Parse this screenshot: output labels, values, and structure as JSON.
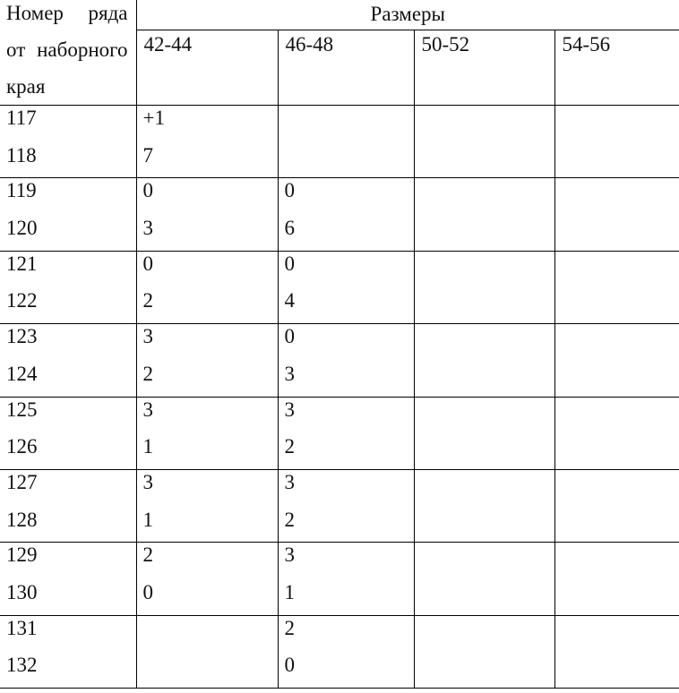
{
  "document": {
    "row_header": {
      "line1_words": [
        "Номер",
        "ряда"
      ],
      "line2_words": [
        "от",
        "наборного"
      ],
      "line3": "края"
    },
    "sizes_group_label": "Размеры",
    "size_columns": [
      "42-44",
      "46-48",
      "50-52",
      "54-56"
    ],
    "rows": [
      {
        "nums": [
          "117",
          "118"
        ],
        "cols": [
          [
            "+1",
            "7"
          ],
          [
            "",
            ""
          ],
          [
            "",
            ""
          ],
          [
            "",
            ""
          ]
        ]
      },
      {
        "nums": [
          "119",
          "120"
        ],
        "cols": [
          [
            "0",
            "3"
          ],
          [
            "0",
            "6"
          ],
          [
            "",
            ""
          ],
          [
            "",
            ""
          ]
        ]
      },
      {
        "nums": [
          "121",
          "122"
        ],
        "cols": [
          [
            "0",
            "2"
          ],
          [
            "0",
            "4"
          ],
          [
            "",
            ""
          ],
          [
            "",
            ""
          ]
        ]
      },
      {
        "nums": [
          "123",
          "124"
        ],
        "cols": [
          [
            "3",
            "2"
          ],
          [
            "0",
            "3"
          ],
          [
            "",
            ""
          ],
          [
            "",
            ""
          ]
        ]
      },
      {
        "nums": [
          "125",
          "126"
        ],
        "cols": [
          [
            "3",
            "1"
          ],
          [
            "3",
            "2"
          ],
          [
            "",
            ""
          ],
          [
            "",
            ""
          ]
        ]
      },
      {
        "nums": [
          "127",
          "128"
        ],
        "cols": [
          [
            "3",
            "1"
          ],
          [
            "3",
            "2"
          ],
          [
            "",
            ""
          ],
          [
            "",
            ""
          ]
        ]
      },
      {
        "nums": [
          "129",
          "130"
        ],
        "cols": [
          [
            "2",
            "0"
          ],
          [
            "3",
            "1"
          ],
          [
            "",
            ""
          ],
          [
            "",
            ""
          ]
        ]
      },
      {
        "nums": [
          "131",
          "132"
        ],
        "cols": [
          [
            "",
            ""
          ],
          [
            "2",
            "0"
          ],
          [
            "",
            ""
          ],
          [
            "",
            ""
          ]
        ]
      }
    ],
    "colors": {
      "border": "#000000",
      "text": "#111111",
      "background": "#ffffff"
    }
  }
}
